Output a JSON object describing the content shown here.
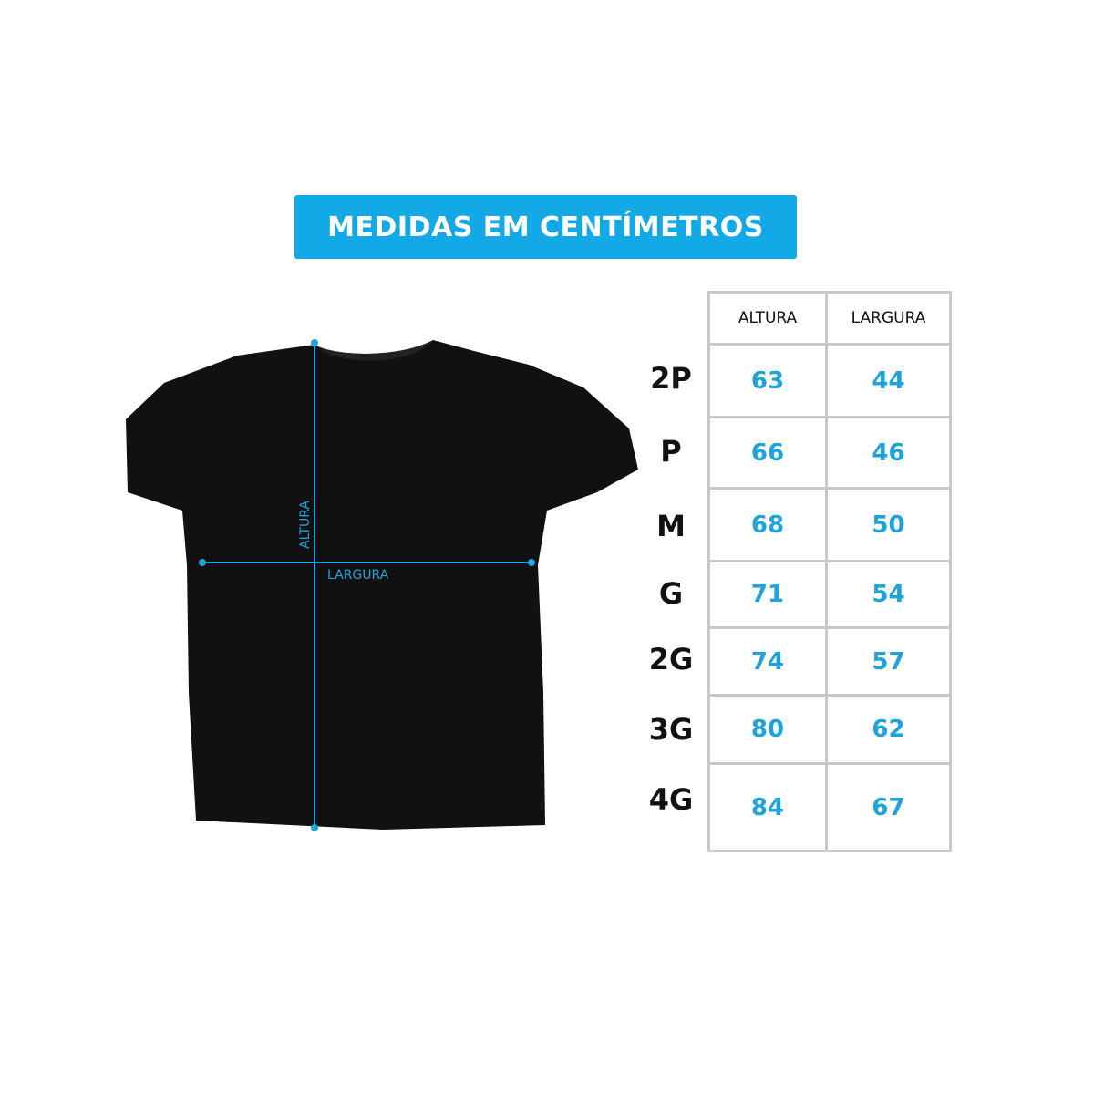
{
  "banner": {
    "title": "MEDIDAS EM CENTÍMETROS",
    "color": "#12a9e6"
  },
  "shirt": {
    "color": "#111111",
    "measure_color": "#1ea4da",
    "height_label": "ALTURA",
    "width_label": "LARGURA"
  },
  "table": {
    "headers": [
      "ALTURA",
      "LARGURA"
    ],
    "rows": [
      {
        "size": "2P",
        "altura": "63",
        "largura": "44"
      },
      {
        "size": "P",
        "altura": "66",
        "largura": "46"
      },
      {
        "size": "M",
        "altura": "68",
        "largura": "50"
      },
      {
        "size": "G",
        "altura": "71",
        "largura": "54"
      },
      {
        "size": "2G",
        "altura": "74",
        "largura": "57"
      },
      {
        "size": "3G",
        "altura": "80",
        "largura": "62"
      },
      {
        "size": "4G",
        "altura": "84",
        "largura": "67"
      }
    ]
  }
}
